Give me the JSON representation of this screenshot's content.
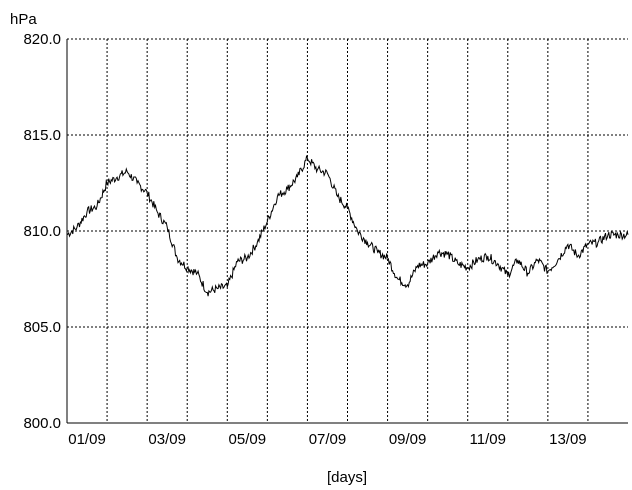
{
  "chart_data": {
    "type": "line",
    "title": "",
    "xlabel": "[days]",
    "ylabel": "hPa",
    "ylim": [
      800.0,
      820.0
    ],
    "xlim": [
      "2000-09-01T00:00",
      "2000-09-15T00:00"
    ],
    "x_tick_labels": [
      "01/09",
      "03/09",
      "05/09",
      "07/09",
      "09/09",
      "11/09",
      "13/09"
    ],
    "y_tick_labels": [
      "800.0",
      "805.0",
      "810.0",
      "815.0",
      "820.0"
    ],
    "grid": true,
    "series": [
      {
        "x": [
          "2000-09-01T00:00",
          "2000-09-01T06:00",
          "2000-09-01T12:00",
          "2000-09-01T18:00",
          "2000-09-02T00:00",
          "2000-09-02T06:00",
          "2000-09-02T12:00",
          "2000-09-02T18:00",
          "2000-09-03T00:00",
          "2000-09-03T06:00",
          "2000-09-03T12:00",
          "2000-09-03T18:00",
          "2000-09-04T00:00",
          "2000-09-04T06:00",
          "2000-09-04T12:00",
          "2000-09-04T18:00",
          "2000-09-05T00:00",
          "2000-09-05T06:00",
          "2000-09-05T12:00",
          "2000-09-05T18:00",
          "2000-09-06T00:00",
          "2000-09-06T06:00",
          "2000-09-06T12:00",
          "2000-09-06T18:00",
          "2000-09-07T00:00",
          "2000-09-07T06:00",
          "2000-09-07T12:00",
          "2000-09-07T18:00",
          "2000-09-08T00:00",
          "2000-09-08T06:00",
          "2000-09-08T12:00",
          "2000-09-08T18:00",
          "2000-09-09T00:00",
          "2000-09-09T06:00",
          "2000-09-09T12:00",
          "2000-09-09T18:00",
          "2000-09-10T00:00",
          "2000-09-10T06:00",
          "2000-09-10T12:00",
          "2000-09-10T18:00",
          "2000-09-11T00:00",
          "2000-09-11T06:00",
          "2000-09-11T12:00",
          "2000-09-11T18:00",
          "2000-09-12T00:00",
          "2000-09-12T06:00",
          "2000-09-12T12:00",
          "2000-09-12T18:00",
          "2000-09-13T00:00",
          "2000-09-13T06:00",
          "2000-09-13T12:00",
          "2000-09-13T18:00",
          "2000-09-14T00:00",
          "2000-09-14T06:00",
          "2000-09-14T12:00",
          "2000-09-14T18:00",
          "2000-09-15T00:00"
        ],
        "y": [
          809.8,
          810.2,
          811.0,
          811.3,
          812.5,
          812.8,
          813.1,
          812.5,
          812.0,
          811.0,
          810.2,
          808.6,
          808.1,
          807.8,
          806.8,
          807.0,
          807.1,
          808.4,
          808.6,
          809.4,
          810.5,
          811.8,
          812.2,
          812.8,
          813.8,
          813.2,
          813.0,
          811.8,
          811.2,
          810.0,
          809.4,
          808.9,
          808.6,
          807.5,
          807.2,
          808.2,
          808.3,
          808.9,
          808.8,
          808.3,
          808.1,
          808.5,
          808.7,
          808.3,
          807.7,
          808.5,
          807.8,
          808.5,
          807.9,
          808.5,
          809.3,
          808.7,
          809.3,
          809.4,
          809.8,
          809.8,
          809.8
        ]
      }
    ]
  }
}
